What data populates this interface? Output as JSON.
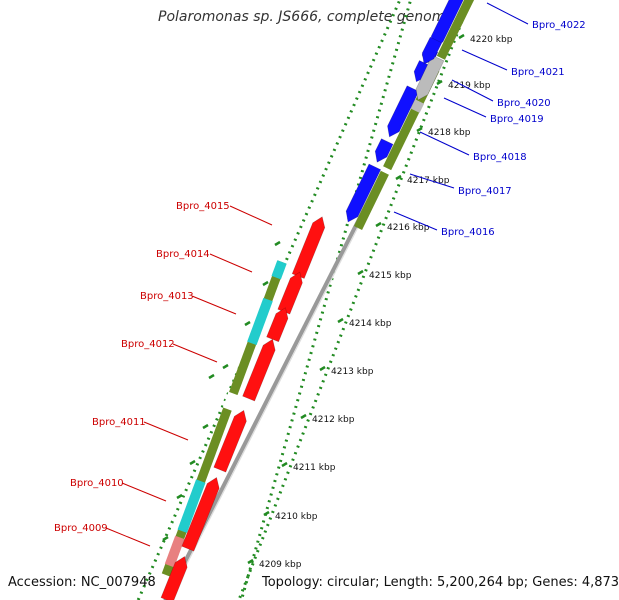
{
  "title": "Polaromonas sp. JS666, complete genome",
  "footer": {
    "accession": "Accession: NC_007948",
    "topology": "Topology: circular; Length: 5,200,264 bp; Genes: 4,873"
  },
  "colors": {
    "forward_gene": "#ff1010",
    "reverse_gene": "#1010ff",
    "pseudo_gene": "#bbbbbb",
    "cds_marker": "#6b8e23",
    "rna_marker": "#22cccc",
    "partial_marker": "#e88080",
    "backbone": "#999999",
    "ticks": "#228b22",
    "forward_label": "#cc0000",
    "reverse_label": "#0000cc"
  },
  "kbp_ticks": [
    {
      "label": "4220 kbp"
    },
    {
      "label": "4219 kbp"
    },
    {
      "label": "4218 kbp"
    },
    {
      "label": "4217 kbp"
    },
    {
      "label": "4216 kbp"
    },
    {
      "label": "4215 kbp"
    },
    {
      "label": "4214 kbp"
    },
    {
      "label": "4213 kbp"
    },
    {
      "label": "4212 kbp"
    },
    {
      "label": "4211 kbp"
    },
    {
      "label": "4210 kbp"
    },
    {
      "label": "4209 kbp"
    }
  ],
  "reverse_genes": [
    {
      "name": "Bpro_4022",
      "icon": "gene-arrow-reverse"
    },
    {
      "name": "Bpro_4021",
      "icon": "gene-arrow-reverse"
    },
    {
      "name": "Bpro_4020",
      "icon": "gene-arrow-pseudo"
    },
    {
      "name": "Bpro_4019",
      "icon": "gene-arrow-reverse"
    },
    {
      "name": "Bpro_4018",
      "icon": "gene-arrow-reverse"
    },
    {
      "name": "Bpro_4017",
      "icon": "gene-arrow-reverse"
    },
    {
      "name": "Bpro_4016",
      "icon": "gene-arrow-reverse"
    }
  ],
  "forward_genes": [
    {
      "name": "Bpro_4015",
      "icon": "gene-arrow-forward"
    },
    {
      "name": "Bpro_4014",
      "icon": "gene-arrow-forward"
    },
    {
      "name": "Bpro_4013",
      "icon": "gene-arrow-forward"
    },
    {
      "name": "Bpro_4012",
      "icon": "gene-arrow-forward"
    },
    {
      "name": "Bpro_4011",
      "icon": "gene-arrow-forward"
    },
    {
      "name": "Bpro_4010",
      "icon": "gene-arrow-forward"
    },
    {
      "name": "Bpro_4009",
      "icon": "gene-arrow-forward"
    }
  ]
}
